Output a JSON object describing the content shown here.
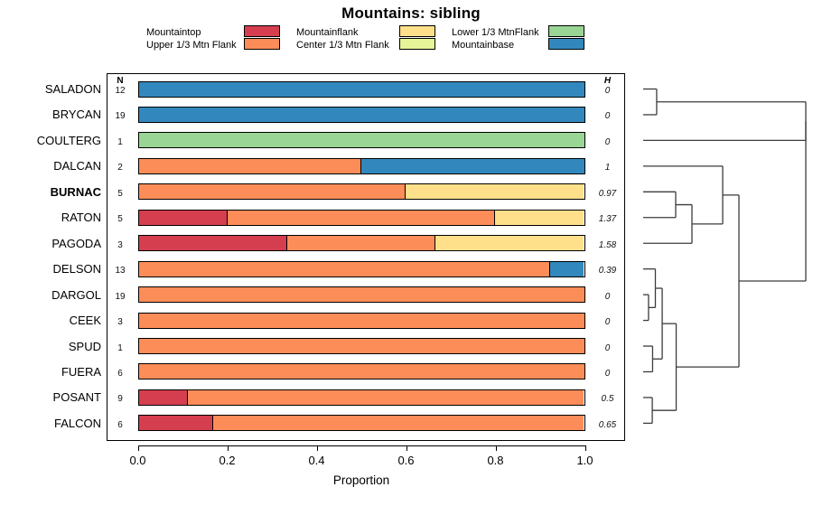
{
  "chart_data": {
    "type": "stacked_bar_horizontal_with_dendrogram",
    "title": "Mountains: sibling",
    "xlabel": "Proportion",
    "n_header": "N",
    "h_header": "H",
    "xlim": [
      0,
      1
    ],
    "x_tick_labels": [
      "0.0",
      "0.2",
      "0.4",
      "0.6",
      "0.8",
      "1.0"
    ],
    "x_tick_values": [
      0,
      0.2,
      0.4,
      0.6,
      0.8,
      1.0
    ],
    "grid": false,
    "legend": {
      "position": "top",
      "columns": 3,
      "items": [
        {
          "label": "Mountaintop",
          "color": "#D53E4F"
        },
        {
          "label": "Upper 1/3 Mtn Flank",
          "color": "#FC8D59"
        },
        {
          "label": "Mountainflank",
          "color": "#FEE08B"
        },
        {
          "label": "Center 1/3 Mtn Flank",
          "color": "#E6F598"
        },
        {
          "label": "Lower 1/3 MtnFlank",
          "color": "#99D594"
        },
        {
          "label": "Mountainbase",
          "color": "#3288BD"
        }
      ]
    },
    "rows": [
      {
        "label": "SALADON",
        "bold": false,
        "n": "12",
        "h": "0",
        "segments": [
          {
            "category": "Mountainbase",
            "value": 1.0
          }
        ]
      },
      {
        "label": "BRYCAN",
        "bold": false,
        "n": "19",
        "h": "0",
        "segments": [
          {
            "category": "Mountainbase",
            "value": 1.0
          }
        ]
      },
      {
        "label": "COULTERG",
        "bold": false,
        "n": "1",
        "h": "0",
        "segments": [
          {
            "category": "Lower 1/3 MtnFlank",
            "value": 1.0
          }
        ]
      },
      {
        "label": "DALCAN",
        "bold": false,
        "n": "2",
        "h": "1",
        "segments": [
          {
            "category": "Upper 1/3 Mtn Flank",
            "value": 0.5
          },
          {
            "category": "Mountainbase",
            "value": 0.5
          }
        ]
      },
      {
        "label": "BURNAC",
        "bold": true,
        "n": "5",
        "h": "0.97",
        "segments": [
          {
            "category": "Upper 1/3 Mtn Flank",
            "value": 0.6
          },
          {
            "category": "Mountainflank",
            "value": 0.4
          }
        ]
      },
      {
        "label": "RATON",
        "bold": false,
        "n": "5",
        "h": "1.37",
        "segments": [
          {
            "category": "Mountaintop",
            "value": 0.2
          },
          {
            "category": "Upper 1/3 Mtn Flank",
            "value": 0.6
          },
          {
            "category": "Mountainflank",
            "value": 0.2
          }
        ]
      },
      {
        "label": "PAGODA",
        "bold": false,
        "n": "3",
        "h": "1.58",
        "segments": [
          {
            "category": "Mountaintop",
            "value": 0.3333
          },
          {
            "category": "Upper 1/3 Mtn Flank",
            "value": 0.3334
          },
          {
            "category": "Mountainflank",
            "value": 0.3333
          }
        ]
      },
      {
        "label": "DELSON",
        "bold": false,
        "n": "13",
        "h": "0.39",
        "segments": [
          {
            "category": "Upper 1/3 Mtn Flank",
            "value": 0.9231
          },
          {
            "category": "Mountainbase",
            "value": 0.0769
          }
        ]
      },
      {
        "label": "DARGOL",
        "bold": false,
        "n": "19",
        "h": "0",
        "segments": [
          {
            "category": "Upper 1/3 Mtn Flank",
            "value": 1.0
          }
        ]
      },
      {
        "label": "CEEK",
        "bold": false,
        "n": "3",
        "h": "0",
        "segments": [
          {
            "category": "Upper 1/3 Mtn Flank",
            "value": 1.0
          }
        ]
      },
      {
        "label": "SPUD",
        "bold": false,
        "n": "1",
        "h": "0",
        "segments": [
          {
            "category": "Upper 1/3 Mtn Flank",
            "value": 1.0
          }
        ]
      },
      {
        "label": "FUERA",
        "bold": false,
        "n": "6",
        "h": "0",
        "segments": [
          {
            "category": "Upper 1/3 Mtn Flank",
            "value": 1.0
          }
        ]
      },
      {
        "label": "POSANT",
        "bold": false,
        "n": "9",
        "h": "0.5",
        "segments": [
          {
            "category": "Mountaintop",
            "value": 0.1111
          },
          {
            "category": "Upper 1/3 Mtn Flank",
            "value": 0.8889
          }
        ]
      },
      {
        "label": "FALCON",
        "bold": false,
        "n": "6",
        "h": "0.65",
        "segments": [
          {
            "category": "Mountaintop",
            "value": 0.1667
          },
          {
            "category": "Upper 1/3 Mtn Flank",
            "value": 0.8333
          }
        ]
      }
    ],
    "dendrogram": {
      "side": "right",
      "leaf_order": [
        "SALADON",
        "BRYCAN",
        "COULTERG",
        "DALCAN",
        "BURNAC",
        "RATON",
        "PAGODA",
        "DELSON",
        "DARGOL",
        "CEEK",
        "SPUD",
        "FUERA",
        "POSANT",
        "FALCON"
      ],
      "merges": [
        {
          "a": "SALADON",
          "b": "BRYCAN",
          "height": 0.083
        },
        {
          "a": "DARGOL",
          "b": "CEEK",
          "height": 0.033
        },
        {
          "a": "DELSON",
          "b": "#1",
          "height": 0.075
        },
        {
          "a": "SPUD",
          "b": "FUERA",
          "height": 0.058
        },
        {
          "a": "POSANT",
          "b": "FALCON",
          "height": 0.056
        },
        {
          "a": "BURNAC",
          "b": "RATON",
          "height": 0.2
        },
        {
          "a": "#5",
          "b": "PAGODA",
          "height": 0.3
        },
        {
          "a": "#2",
          "b": "#3",
          "height": 0.117
        },
        {
          "a": "#7",
          "b": "#4",
          "height": 0.203
        },
        {
          "a": "DALCAN",
          "b": "#6",
          "height": 0.489
        },
        {
          "a": "#9",
          "b": "#8",
          "height": 0.589
        },
        {
          "a": "#0",
          "b": "COULTERG",
          "height": 1.0
        },
        {
          "a": "#11",
          "b": "#10",
          "height": 1.0
        }
      ]
    }
  }
}
